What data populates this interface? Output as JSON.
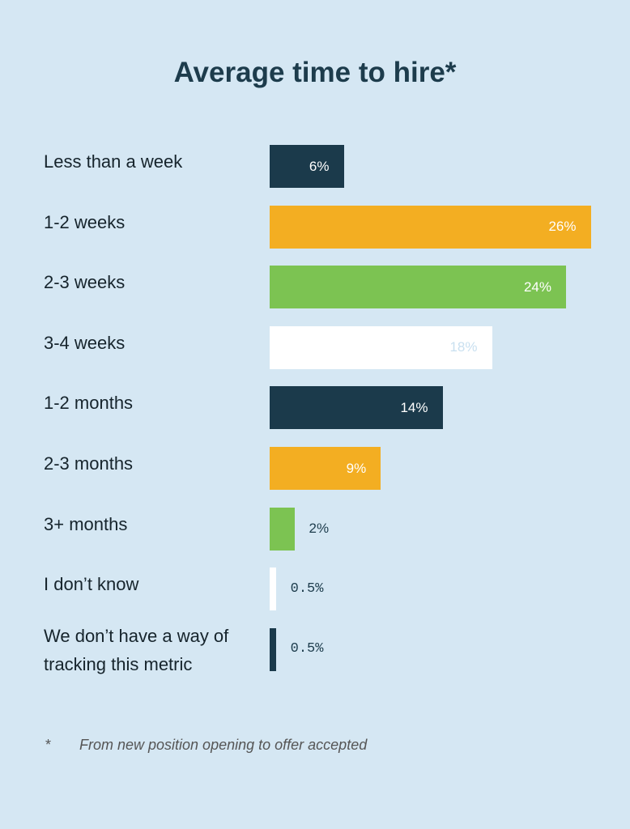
{
  "chart_data": {
    "type": "bar",
    "orientation": "horizontal",
    "title": "Average time to hire*",
    "categories": [
      "Less than a week",
      "1-2 weeks",
      "2-3 weeks",
      "3-4 weeks",
      "1-2 months",
      "2-3 months",
      "3+ months",
      "I don’t know",
      "We don’t have a way of tracking this metric"
    ],
    "values": [
      6,
      26,
      24,
      18,
      14,
      9,
      2,
      0.5,
      0.5
    ],
    "value_labels": [
      "6%",
      "26%",
      "24%",
      "18%",
      "14%",
      "9%",
      "2%",
      "0.5%",
      "0.5%"
    ],
    "colors": [
      "#1b3a4b",
      "#f3ae22",
      "#7cc352",
      "#ffffff",
      "#1b3a4b",
      "#f3ae22",
      "#7cc352",
      "#ffffff",
      "#1b3a4b"
    ],
    "footnote": {
      "marker": "*",
      "text": "From new position opening to offer accepted"
    }
  }
}
